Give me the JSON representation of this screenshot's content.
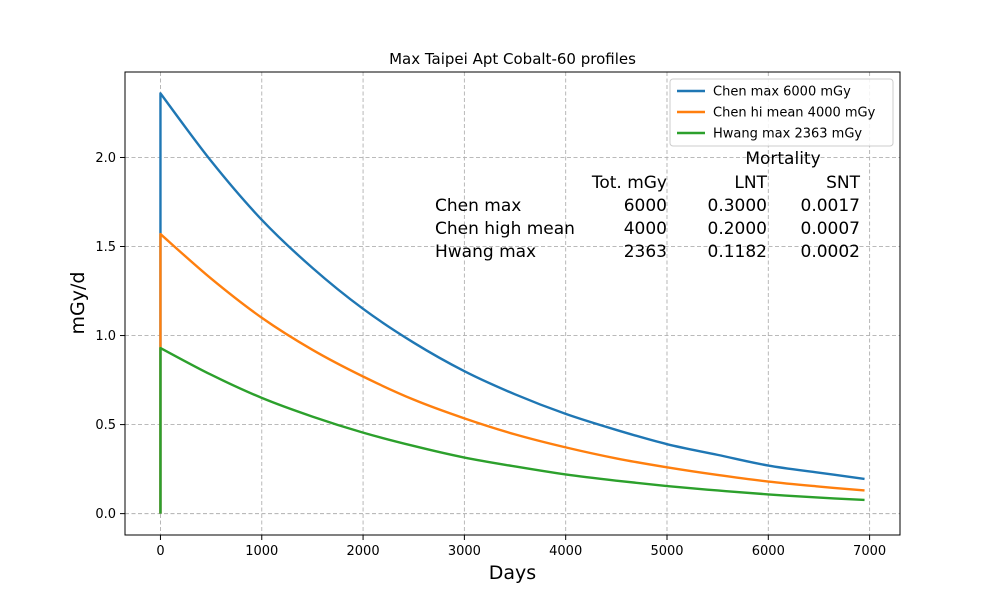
{
  "chart_data": {
    "type": "line",
    "title": "Max Taipei Apt Cobalt-60 profiles",
    "xlabel": "Days",
    "ylabel": "mGy/d",
    "xlim": [
      -350,
      7300
    ],
    "ylim": [
      -0.12,
      2.48
    ],
    "x_ticks": [
      0,
      1000,
      2000,
      3000,
      4000,
      5000,
      6000,
      7000
    ],
    "x_tick_labels": [
      "0",
      "1000",
      "2000",
      "3000",
      "4000",
      "5000",
      "6000",
      "7000"
    ],
    "y_ticks": [
      0.0,
      0.5,
      1.0,
      1.5,
      2.0
    ],
    "y_tick_labels": [
      "0.0",
      "0.5",
      "1.0",
      "1.5",
      "2.0"
    ],
    "grid": true,
    "legend_position": "top-right",
    "x": [
      0,
      0,
      500,
      1000,
      1500,
      2000,
      2500,
      3000,
      3500,
      4000,
      4500,
      5000,
      5500,
      6000,
      6500,
      6950
    ],
    "series": [
      {
        "name": "Chen max 6000 mGy",
        "color": "#1f77b4",
        "values": [
          0.0,
          2.36,
          1.98,
          1.65,
          1.38,
          1.15,
          0.96,
          0.8,
          0.67,
          0.56,
          0.47,
          0.39,
          0.33,
          0.27,
          0.23,
          0.195
        ]
      },
      {
        "name": "Chen hi mean 4000 mGy",
        "color": "#ff7f0e",
        "values": [
          0.0,
          1.57,
          1.32,
          1.1,
          0.92,
          0.77,
          0.64,
          0.535,
          0.445,
          0.372,
          0.31,
          0.26,
          0.217,
          0.18,
          0.152,
          0.13
        ]
      },
      {
        "name": "Hwang max 2363 mGy",
        "color": "#2ca02c",
        "values": [
          0.0,
          0.93,
          0.78,
          0.65,
          0.545,
          0.455,
          0.38,
          0.315,
          0.265,
          0.22,
          0.185,
          0.155,
          0.13,
          0.108,
          0.09,
          0.077
        ]
      }
    ],
    "annotation_table": {
      "group_header": "Mortality",
      "columns": [
        "Tot. mGy",
        "LNT",
        "SNT"
      ],
      "rows": [
        {
          "label": "Chen max",
          "cells": [
            "6000",
            "0.3000",
            "0.0017"
          ]
        },
        {
          "label": "Chen high mean",
          "cells": [
            "4000",
            "0.2000",
            "0.0007"
          ]
        },
        {
          "label": "Hwang max",
          "cells": [
            "2363",
            "0.1182",
            "0.0002"
          ]
        }
      ]
    }
  }
}
